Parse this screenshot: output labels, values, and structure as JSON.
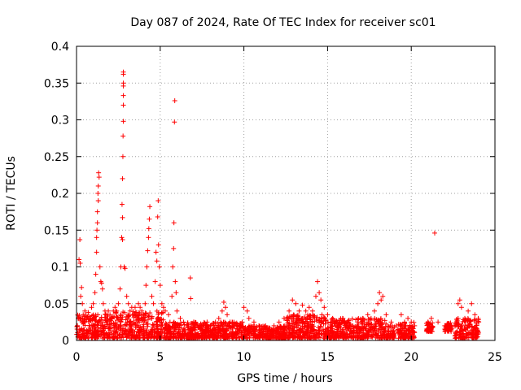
{
  "chart_data": {
    "type": "scatter",
    "title": "Day 087 of 2024, Rate Of TEC Index for receiver sc01",
    "xlabel": "GPS time / hours",
    "ylabel": "ROTI / TECUs",
    "xlim": [
      0,
      25
    ],
    "ylim": [
      0,
      0.4
    ],
    "x_ticks": [
      "0",
      "5",
      "10",
      "15",
      "20",
      "25"
    ],
    "y_ticks": [
      "0",
      "0.05",
      "0.1",
      "0.15",
      "0.2",
      "0.25",
      "0.3",
      "0.35",
      "0.4"
    ],
    "x_tick_values": [
      0,
      5,
      10,
      15,
      20,
      25
    ],
    "y_tick_values": [
      0,
      0.05,
      0.1,
      0.15,
      0.2,
      0.25,
      0.3,
      0.35,
      0.4
    ],
    "grid": true,
    "marker": "plus",
    "color": "#ff0000",
    "series": [
      {
        "points": [
          [
            0.05,
            0.02
          ],
          [
            0.1,
            0.03
          ],
          [
            0.15,
            0.11
          ],
          [
            0.2,
            0.137
          ],
          [
            0.22,
            0.105
          ],
          [
            0.25,
            0.06
          ],
          [
            0.3,
            0.072
          ],
          [
            0.35,
            0.05
          ],
          [
            0.4,
            0.035
          ],
          [
            0.5,
            0.04
          ],
          [
            0.6,
            0.03
          ],
          [
            0.7,
            0.038
          ],
          [
            0.8,
            0.03
          ],
          [
            0.9,
            0.045
          ],
          [
            1.0,
            0.05
          ],
          [
            1.1,
            0.065
          ],
          [
            1.15,
            0.09
          ],
          [
            1.2,
            0.12
          ],
          [
            1.22,
            0.15
          ],
          [
            1.25,
            0.175
          ],
          [
            1.28,
            0.2
          ],
          [
            1.3,
            0.21
          ],
          [
            1.32,
            0.228
          ],
          [
            1.35,
            0.222
          ],
          [
            1.3,
            0.19
          ],
          [
            1.25,
            0.16
          ],
          [
            1.2,
            0.14
          ],
          [
            1.4,
            0.1
          ],
          [
            1.45,
            0.08
          ],
          [
            1.5,
            0.078
          ],
          [
            1.55,
            0.07
          ],
          [
            1.6,
            0.05
          ],
          [
            1.7,
            0.04
          ],
          [
            1.8,
            0.035
          ],
          [
            1.9,
            0.04
          ],
          [
            2.0,
            0.035
          ],
          [
            2.1,
            0.03
          ],
          [
            2.2,
            0.04
          ],
          [
            2.3,
            0.045
          ],
          [
            2.4,
            0.04
          ],
          [
            2.5,
            0.05
          ],
          [
            2.6,
            0.07
          ],
          [
            2.65,
            0.1
          ],
          [
            2.7,
            0.14
          ],
          [
            2.72,
            0.185
          ],
          [
            2.75,
            0.22
          ],
          [
            2.77,
            0.25
          ],
          [
            2.78,
            0.278
          ],
          [
            2.8,
            0.298
          ],
          [
            2.8,
            0.32
          ],
          [
            2.8,
            0.333
          ],
          [
            2.8,
            0.346
          ],
          [
            2.8,
            0.35
          ],
          [
            2.8,
            0.362
          ],
          [
            2.8,
            0.365
          ],
          [
            2.75,
            0.167
          ],
          [
            2.85,
            0.1
          ],
          [
            2.9,
            0.098
          ],
          [
            2.75,
            0.137
          ],
          [
            3.0,
            0.06
          ],
          [
            3.1,
            0.05
          ],
          [
            3.2,
            0.04
          ],
          [
            3.3,
            0.045
          ],
          [
            3.4,
            0.035
          ],
          [
            3.5,
            0.045
          ],
          [
            3.6,
            0.038
          ],
          [
            3.7,
            0.05
          ],
          [
            3.8,
            0.045
          ],
          [
            3.9,
            0.04
          ],
          [
            4.0,
            0.035
          ],
          [
            4.1,
            0.05
          ],
          [
            4.15,
            0.075
          ],
          [
            4.2,
            0.1
          ],
          [
            4.25,
            0.122
          ],
          [
            4.3,
            0.14
          ],
          [
            4.32,
            0.152
          ],
          [
            4.35,
            0.165
          ],
          [
            4.38,
            0.182
          ],
          [
            4.5,
            0.06
          ],
          [
            4.6,
            0.05
          ],
          [
            4.7,
            0.08
          ],
          [
            4.75,
            0.12
          ],
          [
            4.8,
            0.108
          ],
          [
            4.85,
            0.168
          ],
          [
            4.88,
            0.19
          ],
          [
            4.9,
            0.13
          ],
          [
            4.95,
            0.1
          ],
          [
            5.0,
            0.075
          ],
          [
            5.1,
            0.05
          ],
          [
            5.2,
            0.045
          ],
          [
            5.3,
            0.04
          ],
          [
            5.5,
            0.035
          ],
          [
            5.7,
            0.06
          ],
          [
            5.75,
            0.1
          ],
          [
            5.8,
            0.125
          ],
          [
            5.82,
            0.16
          ],
          [
            5.85,
            0.297
          ],
          [
            5.87,
            0.326
          ],
          [
            5.9,
            0.08
          ],
          [
            5.95,
            0.065
          ],
          [
            6.0,
            0.04
          ],
          [
            6.2,
            0.03
          ],
          [
            6.4,
            0.025
          ],
          [
            6.6,
            0.02
          ],
          [
            6.8,
            0.085
          ],
          [
            6.82,
            0.057
          ],
          [
            7.0,
            0.025
          ],
          [
            7.2,
            0.02
          ],
          [
            7.5,
            0.02
          ],
          [
            7.8,
            0.025
          ],
          [
            8.0,
            0.02
          ],
          [
            8.3,
            0.025
          ],
          [
            8.5,
            0.03
          ],
          [
            8.7,
            0.04
          ],
          [
            8.8,
            0.052
          ],
          [
            8.9,
            0.045
          ],
          [
            9.0,
            0.035
          ],
          [
            9.3,
            0.025
          ],
          [
            9.6,
            0.02
          ],
          [
            9.9,
            0.025
          ],
          [
            10.0,
            0.045
          ],
          [
            10.2,
            0.04
          ],
          [
            10.3,
            0.03
          ],
          [
            10.6,
            0.025
          ],
          [
            10.9,
            0.02
          ],
          [
            11.2,
            0.015
          ],
          [
            11.5,
            0.015
          ],
          [
            11.8,
            0.02
          ],
          [
            12.1,
            0.025
          ],
          [
            12.4,
            0.03
          ],
          [
            12.7,
            0.04
          ],
          [
            12.9,
            0.055
          ],
          [
            13.1,
            0.05
          ],
          [
            13.3,
            0.04
          ],
          [
            13.5,
            0.048
          ],
          [
            13.7,
            0.04
          ],
          [
            13.9,
            0.045
          ],
          [
            14.1,
            0.04
          ],
          [
            14.3,
            0.06
          ],
          [
            14.4,
            0.08
          ],
          [
            14.5,
            0.065
          ],
          [
            14.6,
            0.055
          ],
          [
            14.8,
            0.045
          ],
          [
            15.0,
            0.035
          ],
          [
            15.3,
            0.03
          ],
          [
            15.6,
            0.025
          ],
          [
            15.9,
            0.03
          ],
          [
            16.2,
            0.025
          ],
          [
            16.5,
            0.02
          ],
          [
            16.8,
            0.025
          ],
          [
            17.1,
            0.03
          ],
          [
            17.4,
            0.035
          ],
          [
            17.6,
            0.03
          ],
          [
            17.8,
            0.04
          ],
          [
            18.0,
            0.05
          ],
          [
            18.1,
            0.065
          ],
          [
            18.2,
            0.055
          ],
          [
            18.3,
            0.06
          ],
          [
            18.5,
            0.035
          ],
          [
            18.8,
            0.025
          ],
          [
            19.1,
            0.02
          ],
          [
            19.4,
            0.035
          ],
          [
            19.6,
            0.025
          ],
          [
            19.8,
            0.03
          ],
          [
            20.0,
            0.025
          ],
          [
            20.2,
            0.02
          ],
          [
            21.0,
            0.025
          ],
          [
            21.2,
            0.03
          ],
          [
            21.4,
            0.146
          ],
          [
            21.6,
            0.025
          ],
          [
            22.0,
            0.02
          ],
          [
            22.4,
            0.02
          ],
          [
            22.8,
            0.05
          ],
          [
            22.9,
            0.055
          ],
          [
            23.0,
            0.045
          ],
          [
            23.2,
            0.03
          ],
          [
            23.4,
            0.04
          ],
          [
            23.6,
            0.05
          ],
          [
            23.8,
            0.035
          ],
          [
            24.0,
            0.03
          ]
        ]
      }
    ],
    "bands": [
      [
        0.0,
        1.6,
        0.003,
        0.035
      ],
      [
        1.6,
        5.2,
        0.003,
        0.04
      ],
      [
        5.2,
        7.5,
        0.003,
        0.025
      ],
      [
        7.5,
        10.0,
        0.003,
        0.025
      ],
      [
        10.0,
        12.5,
        0.003,
        0.02
      ],
      [
        12.5,
        15.0,
        0.003,
        0.035
      ],
      [
        15.0,
        18.5,
        0.003,
        0.03
      ],
      [
        18.5,
        19.0,
        0.003,
        0.02
      ],
      [
        19.2,
        20.2,
        0.003,
        0.025
      ],
      [
        20.9,
        21.3,
        0.012,
        0.025
      ],
      [
        22.0,
        22.4,
        0.012,
        0.024
      ],
      [
        22.6,
        24.05,
        0.003,
        0.03
      ]
    ]
  }
}
